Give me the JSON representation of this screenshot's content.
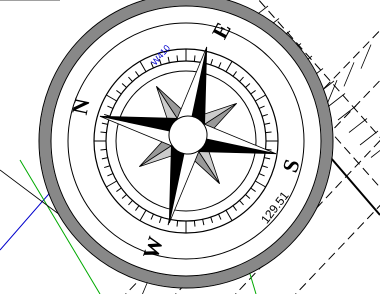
{
  "compass": {
    "north": "N",
    "east": "E",
    "south": "S",
    "west": "W"
  },
  "annotations": {
    "bearing": "129.51",
    "line_label": "W410"
  }
}
